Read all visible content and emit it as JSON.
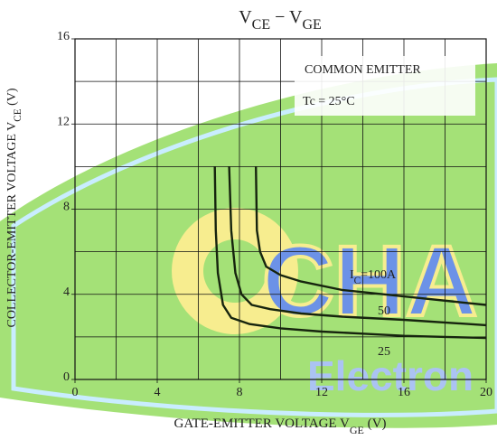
{
  "chart_data": {
    "type": "line",
    "title": [
      "V",
      "CE",
      " − V",
      "GE"
    ],
    "xlabel": [
      "GATE-EMITTER VOLTAGE  V",
      "GE",
      "  (V)"
    ],
    "ylabel": [
      "COLLECTOR-EMITTER VOLTAGE  V",
      "CE",
      "  (V)"
    ],
    "annotations": [
      "COMMON EMITTER",
      "Tc = 25°C"
    ],
    "watermark": [
      "CHA",
      "Electron"
    ],
    "xlim": [
      0,
      20
    ],
    "ylim": [
      0,
      16
    ],
    "xticks": [
      0,
      4,
      8,
      12,
      16,
      20
    ],
    "yticks": [
      0,
      4,
      8,
      12,
      16
    ],
    "xgrid": [
      2,
      4,
      6,
      8,
      10,
      12,
      14,
      16,
      18
    ],
    "ygrid": [
      2,
      4,
      6,
      8,
      10,
      12,
      14
    ],
    "grid": true,
    "series": [
      {
        "label": [
          "I",
          "C",
          "=100A"
        ],
        "color": "#16240e",
        "x": [
          8.8,
          8.85,
          9.0,
          9.3,
          10,
          11,
          13,
          16,
          20
        ],
        "values": [
          10,
          7,
          6,
          5.3,
          4.9,
          4.6,
          4.2,
          3.9,
          3.5
        ]
      },
      {
        "label": [
          "50"
        ],
        "color": "#16240e",
        "x": [
          7.5,
          7.6,
          7.8,
          8.1,
          8.6,
          9.5,
          11,
          13,
          16,
          20
        ],
        "values": [
          10,
          7,
          5,
          4,
          3.5,
          3.3,
          3.1,
          2.95,
          2.8,
          2.55
        ]
      },
      {
        "label": [
          "25"
        ],
        "color": "#16240e",
        "x": [
          6.8,
          6.85,
          6.95,
          7.2,
          7.6,
          8.5,
          10,
          12,
          14,
          16,
          18,
          20
        ],
        "values": [
          10,
          7,
          5,
          3.5,
          2.9,
          2.6,
          2.4,
          2.25,
          2.15,
          2.05,
          2.0,
          1.95
        ]
      }
    ]
  }
}
